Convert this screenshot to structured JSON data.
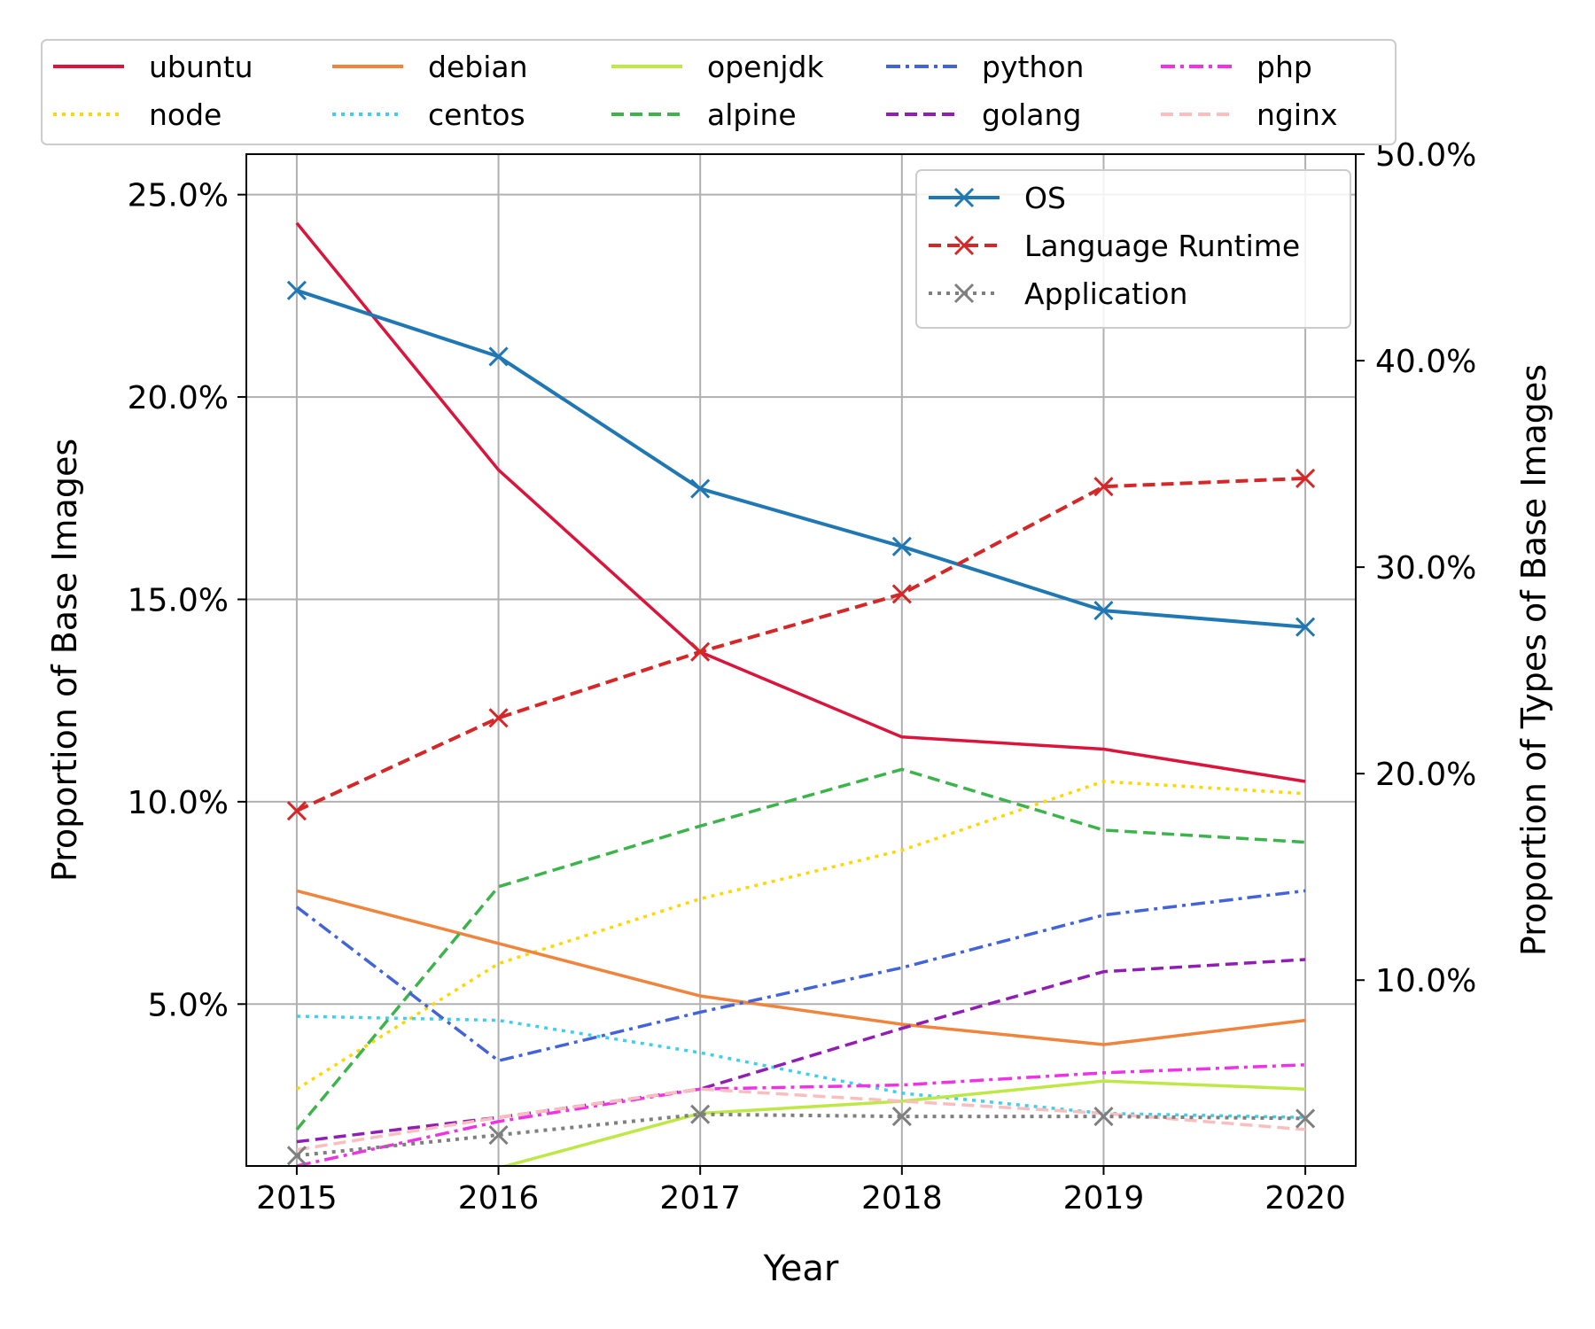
{
  "chart_data": {
    "type": "line",
    "title": "",
    "x": [
      2015,
      2016,
      2017,
      2018,
      2019,
      2020
    ],
    "xlabel": "Year",
    "ylabel_left": "Proportion of Base Images",
    "ylabel_right": "Proportion of Types of Base Images",
    "xlim": [
      2014.75,
      2020.25
    ],
    "ylim_left": [
      1.0,
      26.0
    ],
    "ylim_right": [
      1.0,
      50.0
    ],
    "yticks_left": [
      5.0,
      10.0,
      15.0,
      20.0,
      25.0
    ],
    "yticks_right": [
      10.0,
      20.0,
      30.0,
      40.0,
      50.0
    ],
    "grid": true,
    "legend_images_position": "top, above plot",
    "legend_types_position": "top-right",
    "series": [
      {
        "name": "ubuntu",
        "axis": "left",
        "color": "#dc143c",
        "dash": "solid",
        "values": [
          24.3,
          18.2,
          13.7,
          11.6,
          11.3,
          10.5
        ]
      },
      {
        "name": "node",
        "axis": "left",
        "color": "#ffd700",
        "dash": "dotted",
        "values": [
          2.9,
          6.0,
          7.6,
          8.8,
          10.5,
          10.2
        ]
      },
      {
        "name": "debian",
        "axis": "left",
        "color": "#f0843c",
        "dash": "solid",
        "values": [
          7.8,
          6.5,
          5.2,
          4.5,
          4.0,
          4.6
        ]
      },
      {
        "name": "centos",
        "axis": "left",
        "color": "#3cd0f0",
        "dash": "dotted",
        "values": [
          4.7,
          4.6,
          3.8,
          2.8,
          2.3,
          2.2
        ]
      },
      {
        "name": "openjdk",
        "axis": "left",
        "color": "#bde845",
        "dash": "solid",
        "values": [
          null,
          0.95,
          2.3,
          2.6,
          3.1,
          2.9
        ]
      },
      {
        "name": "alpine",
        "axis": "left",
        "color": "#3cb44b",
        "dash": "dashed",
        "values": [
          1.9,
          7.9,
          9.4,
          10.8,
          9.3,
          9.0
        ]
      },
      {
        "name": "python",
        "axis": "left",
        "color": "#4363d8",
        "dash": "dashdot",
        "values": [
          7.4,
          3.6,
          4.8,
          5.9,
          7.2,
          7.8
        ]
      },
      {
        "name": "golang",
        "axis": "left",
        "color": "#911eb4",
        "dash": "dashed",
        "values": [
          1.6,
          2.2,
          2.9,
          4.4,
          5.8,
          6.1
        ]
      },
      {
        "name": "php",
        "axis": "left",
        "color": "#f032e6",
        "dash": "dashdot",
        "values": [
          1.0,
          2.1,
          2.9,
          3.0,
          3.3,
          3.5
        ]
      },
      {
        "name": "nginx",
        "axis": "left",
        "color": "#fabebe",
        "dash": "dashed",
        "values": [
          1.4,
          2.2,
          2.9,
          2.6,
          2.3,
          1.9
        ]
      },
      {
        "name": "OS",
        "axis": "right",
        "color": "#1f77b4",
        "dash": "solid",
        "marker": "x",
        "values": [
          43.4,
          40.2,
          33.8,
          31.0,
          27.9,
          27.1
        ]
      },
      {
        "name": "Language Runtime",
        "axis": "right",
        "color": "#d62728",
        "dash": "dashed",
        "marker": "x",
        "values": [
          18.2,
          22.7,
          25.9,
          28.7,
          33.9,
          34.3
        ]
      },
      {
        "name": "Application",
        "axis": "right",
        "color": "#7f7f7f",
        "dash": "dotted",
        "marker": "x",
        "values": [
          1.5,
          2.5,
          3.5,
          3.4,
          3.4,
          3.3
        ]
      }
    ]
  }
}
